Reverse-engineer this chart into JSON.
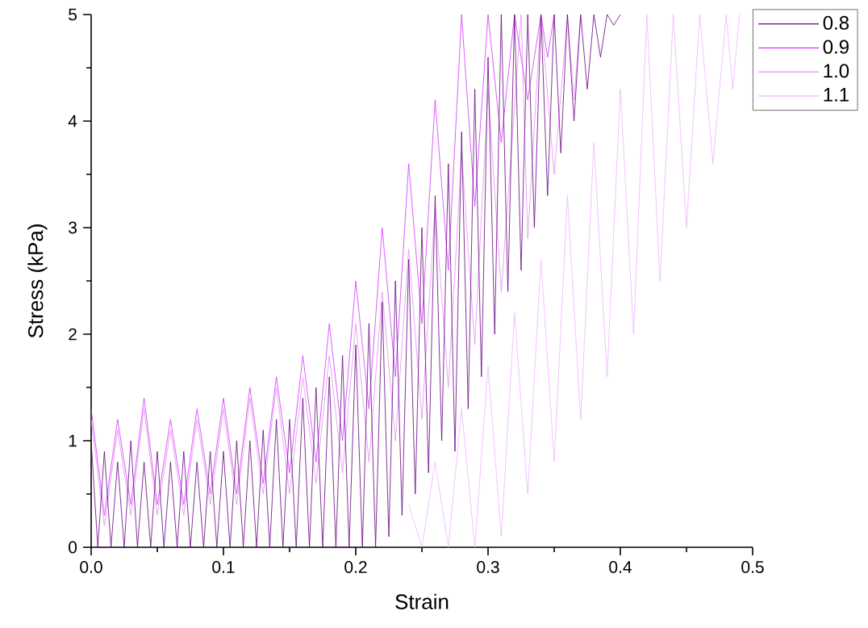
{
  "chart_data": {
    "type": "line",
    "xlabel": "Strain",
    "ylabel": "Stress (kPa)",
    "xlim": [
      0,
      0.5
    ],
    "ylim": [
      0,
      5
    ],
    "xticks": [
      {
        "value": 0,
        "label": "0.0"
      },
      0.1,
      0.2,
      0.3,
      0.4,
      0.5
    ],
    "yticks": [
      0,
      1,
      2,
      3,
      4,
      5
    ],
    "legend": "top right",
    "marker": "none",
    "line_style": "solid",
    "series": [
      {
        "name": "0.8",
        "color": "#660080",
        "x": [
          0,
          0.005,
          0.01,
          0.015,
          0.02,
          0.025,
          0.03,
          0.035,
          0.04,
          0.045,
          0.05,
          0.055,
          0.06,
          0.065,
          0.07,
          0.075,
          0.08,
          0.085,
          0.09,
          0.095,
          0.1,
          0.105,
          0.11,
          0.115,
          0.12,
          0.125,
          0.13,
          0.135,
          0.14,
          0.145,
          0.15,
          0.155,
          0.16,
          0.165,
          0.17,
          0.175,
          0.18,
          0.185,
          0.19,
          0.195,
          0.2,
          0.205,
          0.21,
          0.215,
          0.22,
          0.225,
          0.23,
          0.235,
          0.24,
          0.245,
          0.25,
          0.255,
          0.26,
          0.265,
          0.27,
          0.275,
          0.28,
          0.285,
          0.29,
          0.295,
          0.3,
          0.305,
          0.31,
          0.315,
          0.32,
          0.325,
          0.33,
          0.335,
          0.34,
          0.345,
          0.35,
          0.355,
          0.36,
          0.365,
          0.37,
          0.375,
          0.38,
          0.385,
          0.39,
          0.395,
          0.4
        ],
        "values": [
          1.0,
          0,
          0.9,
          0,
          0.8,
          0,
          1.0,
          0,
          0.8,
          0,
          0.9,
          0,
          0.8,
          0,
          0.9,
          0,
          0.8,
          0,
          0.9,
          0,
          0.9,
          0,
          1.0,
          0,
          1.0,
          0,
          1.1,
          0,
          1.2,
          0,
          1.2,
          0,
          1.4,
          0,
          1.5,
          0,
          1.6,
          0,
          1.8,
          0,
          1.9,
          0,
          2.1,
          0,
          2.3,
          0.1,
          2.5,
          0.3,
          2.7,
          0.5,
          3.0,
          0.7,
          3.3,
          1.0,
          3.6,
          0.9,
          3.9,
          1.3,
          4.3,
          1.6,
          4.6,
          2.0,
          5.0,
          2.4,
          5.0,
          2.6,
          5.0,
          3.0,
          5.0,
          3.3,
          5.0,
          3.7,
          5.0,
          4.0,
          5.0,
          4.3,
          5.0,
          4.6,
          5.0,
          4.9,
          5.0
        ]
      },
      {
        "name": "0.9",
        "color": "#d633ff",
        "x": [
          0,
          0.01,
          0.02,
          0.03,
          0.04,
          0.05,
          0.06,
          0.07,
          0.08,
          0.09,
          0.1,
          0.11,
          0.12,
          0.13,
          0.14,
          0.15,
          0.16,
          0.17,
          0.18,
          0.19,
          0.2,
          0.21,
          0.22,
          0.23,
          0.24,
          0.25,
          0.26,
          0.27,
          0.28,
          0.29,
          0.3,
          0.31,
          0.32,
          0.33,
          0.34,
          0.345,
          0.35
        ],
        "values": [
          1.3,
          0.3,
          1.2,
          0.4,
          1.4,
          0.4,
          1.2,
          0.4,
          1.3,
          0.5,
          1.4,
          0.5,
          1.5,
          0.6,
          1.6,
          0.7,
          1.8,
          0.8,
          2.1,
          1.0,
          2.5,
          1.3,
          3.0,
          1.6,
          3.6,
          2.1,
          4.2,
          2.6,
          5.0,
          3.2,
          5.0,
          3.8,
          5.0,
          4.2,
          5.0,
          4.6,
          5.0
        ]
      },
      {
        "name": "1.0",
        "color": "#e68ef5",
        "x": [
          0,
          0.01,
          0.02,
          0.03,
          0.04,
          0.05,
          0.06,
          0.07,
          0.08,
          0.09,
          0.1,
          0.11,
          0.12,
          0.13,
          0.14,
          0.15,
          0.16,
          0.17,
          0.18,
          0.19,
          0.2,
          0.21,
          0.22,
          0.23,
          0.24,
          0.25,
          0.26,
          0.27,
          0.28,
          0.29,
          0.3,
          0.31,
          0.325,
          0.33,
          0.34,
          0.35,
          0.36,
          0.365,
          0.37
        ],
        "values": [
          1.2,
          0.2,
          1.1,
          0.3,
          1.3,
          0.3,
          1.1,
          0.3,
          1.2,
          0.4,
          1.3,
          0.4,
          1.4,
          0.5,
          1.5,
          0.5,
          1.6,
          0.6,
          1.8,
          0.7,
          2.1,
          0.8,
          2.4,
          1.0,
          2.8,
          1.2,
          3.2,
          1.5,
          3.7,
          1.9,
          4.3,
          2.4,
          5.0,
          2.9,
          5.0,
          3.5,
          5.0,
          4.2,
          5.0
        ]
      },
      {
        "name": "1.1",
        "color": "#f0b3ff",
        "x": [
          0.24,
          0.25,
          0.26,
          0.27,
          0.28,
          0.29,
          0.3,
          0.31,
          0.32,
          0.33,
          0.34,
          0.35,
          0.36,
          0.37,
          0.38,
          0.39,
          0.4,
          0.41,
          0.42,
          0.43,
          0.44,
          0.45,
          0.46,
          0.47,
          0.48,
          0.485,
          0.49
        ],
        "values": [
          0.4,
          0,
          0.8,
          0,
          1.3,
          0,
          1.7,
          0.1,
          2.2,
          0.5,
          2.7,
          0.8,
          3.3,
          1.2,
          3.8,
          1.6,
          4.3,
          2.0,
          5.0,
          2.5,
          5.0,
          3.0,
          5.0,
          3.6,
          5.0,
          4.3,
          5.0
        ]
      }
    ]
  }
}
